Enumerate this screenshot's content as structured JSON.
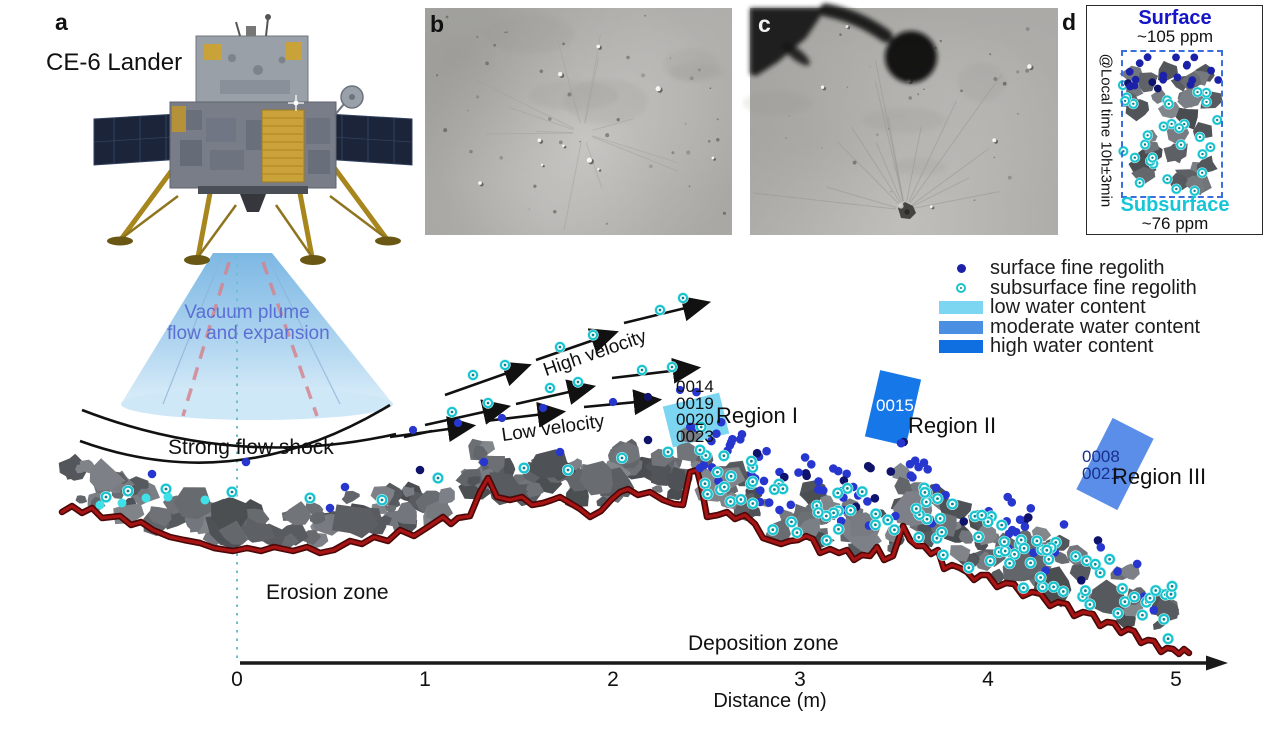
{
  "panel_a": {
    "label": "a",
    "lander_caption": "CE-6 Lander",
    "plume_line1": "Vacuum plume",
    "plume_line2": "flow and expansion",
    "shock_label": "Strong flow shock"
  },
  "panel_b": {
    "label": "b"
  },
  "panel_c": {
    "label": "c"
  },
  "panel_d": {
    "label": "d",
    "surface_label": "Surface",
    "surface_value": "~105 ppm",
    "subsurface_label": "Subsurface",
    "subsurface_value": "~76 ppm",
    "side_note": "@Local time 10h±3min"
  },
  "legend": {
    "items": [
      {
        "label": "surface fine regolith",
        "marker": "navy-dot",
        "color": "#1b21a8"
      },
      {
        "label": "subsurface fine regolith",
        "marker": "cyan-ring",
        "color": "#17c3cf"
      },
      {
        "label": "low water content",
        "marker": "bar",
        "color": "#7cd6f2"
      },
      {
        "label": "moderate water content",
        "marker": "bar",
        "color": "#4b8fe2"
      },
      {
        "label": "high water content",
        "marker": "bar",
        "color": "#0f6fe0"
      }
    ]
  },
  "flow_labels": {
    "high": "High velocity",
    "low": "Low velocity"
  },
  "regions": [
    {
      "name": "Region I",
      "samples": [
        "0014",
        "0019",
        "0020",
        "0023"
      ],
      "water_level": "low",
      "patch_color": "#7cd6f2"
    },
    {
      "name": "Region II",
      "samples": [
        "0015"
      ],
      "water_level": "high",
      "patch_color": "#1577e8"
    },
    {
      "name": "Region III",
      "samples": [
        "0008",
        "0021"
      ],
      "water_level": "moderate",
      "patch_color": "#5b8ee8"
    }
  ],
  "zones": {
    "erosion": "Erosion zone",
    "deposition": "Deposition zone"
  },
  "axis": {
    "tick_labels": [
      "0",
      "1",
      "2",
      "3",
      "4",
      "5"
    ],
    "title": "Distance (m)"
  },
  "colors": {
    "surface_dot": "#2636cf",
    "surface_dot_dark": "#10136b",
    "subsurface_ring": "#17c3cf",
    "cyan_fill_dot": "#3fe0e8",
    "terrain": "#a81414",
    "plume_text": "#5b6fd4",
    "surface_text": "#1414c8",
    "subsurface_text": "#17c6d6",
    "region1_text": "#101010",
    "region2_text": "#ffffff",
    "region3_text": "#18308f"
  }
}
